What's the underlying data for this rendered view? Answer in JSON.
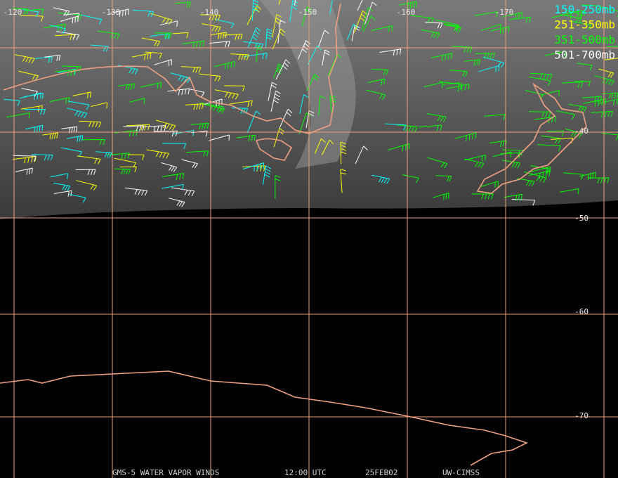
{
  "longitude_labels": [
    "-120",
    "-130",
    "-140",
    "-150",
    "-160",
    "-170"
  ],
  "latitude_labels": [
    "-40",
    "-50",
    "-60",
    "-70"
  ],
  "legend": [
    {
      "label": "150-250mb",
      "color": "#00ffff"
    },
    {
      "label": "251-350mb",
      "color": "#ffff00"
    },
    {
      "label": "351-500mb",
      "color": "#00ff00"
    },
    {
      "label": "501-700mb",
      "color": "#ffffff"
    }
  ],
  "footer": [
    "GMS-5 WATER VAPOR WINDS",
    "12:00 UTC",
    "25FEB02",
    "UW-CIMSS"
  ]
}
